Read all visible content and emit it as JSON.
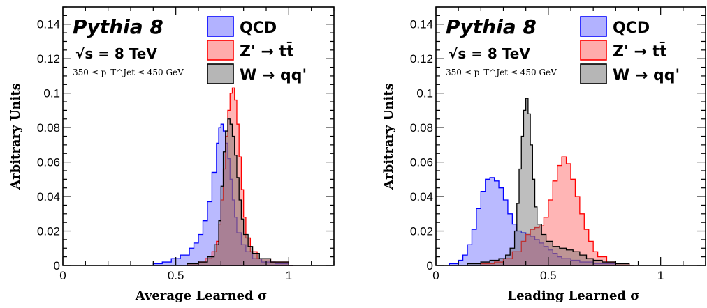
{
  "chart_data": [
    {
      "type": "histogram",
      "xlabel": "Average Learned σ",
      "ylabel": "Arbitrary Units",
      "xlim": [
        0,
        1.2
      ],
      "ylim": [
        0,
        0.15
      ],
      "xticks": [
        "0",
        "0.5",
        "1"
      ],
      "yticks": [
        "0",
        "0.02",
        "0.04",
        "0.06",
        "0.08",
        "0.1",
        "0.12",
        "0.14"
      ],
      "annotations": {
        "generator": "Pythia 8",
        "energy": "√s = 8 TeV",
        "cut": "350 ≤ p_T^Jet ≤ 450 GeV"
      },
      "legend_position": "top-right",
      "series": [
        {
          "name": "QCD",
          "color": "#0000ff",
          "bins": [
            [
              0.4,
              0.001
            ],
            [
              0.44,
              0.002
            ],
            [
              0.48,
              0.004
            ],
            [
              0.52,
              0.006
            ],
            [
              0.56,
              0.01
            ],
            [
              0.58,
              0.013
            ],
            [
              0.6,
              0.018
            ],
            [
              0.62,
              0.026
            ],
            [
              0.64,
              0.037
            ],
            [
              0.66,
              0.054
            ],
            [
              0.68,
              0.071
            ],
            [
              0.69,
              0.08
            ],
            [
              0.7,
              0.082
            ],
            [
              0.71,
              0.078
            ],
            [
              0.72,
              0.071
            ],
            [
              0.73,
              0.062
            ],
            [
              0.74,
              0.05
            ],
            [
              0.75,
              0.038
            ],
            [
              0.76,
              0.028
            ],
            [
              0.77,
              0.019
            ],
            [
              0.79,
              0.012
            ],
            [
              0.81,
              0.008
            ],
            [
              0.84,
              0.004
            ],
            [
              0.88,
              0.002
            ],
            [
              0.94,
              0.001
            ],
            [
              1.0,
              0.0
            ]
          ]
        },
        {
          "name": "Z' → tt̄",
          "color": "#ff0000",
          "bins": [
            [
              0.55,
              0.001
            ],
            [
              0.6,
              0.002
            ],
            [
              0.63,
              0.004
            ],
            [
              0.66,
              0.008
            ],
            [
              0.68,
              0.014
            ],
            [
              0.69,
              0.024
            ],
            [
              0.7,
              0.038
            ],
            [
              0.71,
              0.056
            ],
            [
              0.72,
              0.075
            ],
            [
              0.73,
              0.09
            ],
            [
              0.74,
              0.1
            ],
            [
              0.75,
              0.103
            ],
            [
              0.76,
              0.096
            ],
            [
              0.77,
              0.082
            ],
            [
              0.78,
              0.063
            ],
            [
              0.79,
              0.044
            ],
            [
              0.8,
              0.028
            ],
            [
              0.81,
              0.016
            ],
            [
              0.83,
              0.008
            ],
            [
              0.86,
              0.004
            ],
            [
              0.92,
              0.002
            ],
            [
              1.0,
              0.0
            ]
          ]
        },
        {
          "name": "W → qq'",
          "color": "#000000",
          "bins": [
            [
              0.55,
              0.001
            ],
            [
              0.6,
              0.002
            ],
            [
              0.64,
              0.005
            ],
            [
              0.67,
              0.012
            ],
            [
              0.69,
              0.026
            ],
            [
              0.7,
              0.046
            ],
            [
              0.71,
              0.066
            ],
            [
              0.72,
              0.078
            ],
            [
              0.73,
              0.085
            ],
            [
              0.74,
              0.082
            ],
            [
              0.75,
              0.075
            ],
            [
              0.76,
              0.064
            ],
            [
              0.77,
              0.051
            ],
            [
              0.78,
              0.038
            ],
            [
              0.79,
              0.027
            ],
            [
              0.8,
              0.018
            ],
            [
              0.82,
              0.011
            ],
            [
              0.84,
              0.007
            ],
            [
              0.87,
              0.004
            ],
            [
              0.92,
              0.002
            ],
            [
              1.0,
              0.0
            ]
          ]
        }
      ]
    },
    {
      "type": "histogram",
      "xlabel": "Leading Learned σ",
      "ylabel": "Arbitrary Units",
      "xlim": [
        0,
        1.2
      ],
      "ylim": [
        0,
        0.15
      ],
      "xticks": [
        "0",
        "0.5",
        "1"
      ],
      "yticks": [
        "0",
        "0.02",
        "0.04",
        "0.06",
        "0.08",
        "0.1",
        "0.12",
        "0.14"
      ],
      "annotations": {
        "generator": "Pythia 8",
        "energy": "√s = 8 TeV",
        "cut": "350 ≤ p_T^Jet ≤ 450 GeV"
      },
      "legend_position": "top-right",
      "series": [
        {
          "name": "QCD",
          "color": "#0000ff",
          "bins": [
            [
              0.06,
              0.001
            ],
            [
              0.1,
              0.003
            ],
            [
              0.12,
              0.006
            ],
            [
              0.14,
              0.012
            ],
            [
              0.16,
              0.021
            ],
            [
              0.18,
              0.033
            ],
            [
              0.2,
              0.043
            ],
            [
              0.22,
              0.05
            ],
            [
              0.24,
              0.051
            ],
            [
              0.26,
              0.049
            ],
            [
              0.28,
              0.045
            ],
            [
              0.3,
              0.038
            ],
            [
              0.32,
              0.03
            ],
            [
              0.34,
              0.024
            ],
            [
              0.36,
              0.02
            ],
            [
              0.38,
              0.019
            ],
            [
              0.4,
              0.018
            ],
            [
              0.42,
              0.017
            ],
            [
              0.44,
              0.015
            ],
            [
              0.46,
              0.013
            ],
            [
              0.48,
              0.011
            ],
            [
              0.5,
              0.009
            ],
            [
              0.52,
              0.007
            ],
            [
              0.54,
              0.005
            ],
            [
              0.56,
              0.004
            ],
            [
              0.6,
              0.003
            ],
            [
              0.64,
              0.002
            ],
            [
              0.7,
              0.001
            ],
            [
              0.8,
              0.0
            ]
          ]
        },
        {
          "name": "Z' → tt̄",
          "color": "#ff0000",
          "bins": [
            [
              0.2,
              0.001
            ],
            [
              0.26,
              0.002
            ],
            [
              0.3,
              0.004
            ],
            [
              0.34,
              0.008
            ],
            [
              0.38,
              0.014
            ],
            [
              0.4,
              0.018
            ],
            [
              0.42,
              0.021
            ],
            [
              0.44,
              0.022
            ],
            [
              0.46,
              0.023
            ],
            [
              0.48,
              0.028
            ],
            [
              0.5,
              0.038
            ],
            [
              0.52,
              0.049
            ],
            [
              0.54,
              0.058
            ],
            [
              0.56,
              0.063
            ],
            [
              0.58,
              0.059
            ],
            [
              0.6,
              0.05
            ],
            [
              0.62,
              0.04
            ],
            [
              0.64,
              0.03
            ],
            [
              0.66,
              0.021
            ],
            [
              0.68,
              0.014
            ],
            [
              0.7,
              0.008
            ],
            [
              0.72,
              0.005
            ],
            [
              0.76,
              0.002
            ],
            [
              0.8,
              0.001
            ],
            [
              0.86,
              0.0
            ]
          ]
        },
        {
          "name": "W → qq'",
          "color": "#000000",
          "bins": [
            [
              0.14,
              0.001
            ],
            [
              0.2,
              0.002
            ],
            [
              0.24,
              0.003
            ],
            [
              0.28,
              0.004
            ],
            [
              0.31,
              0.006
            ],
            [
              0.33,
              0.01
            ],
            [
              0.35,
              0.02
            ],
            [
              0.36,
              0.036
            ],
            [
              0.37,
              0.056
            ],
            [
              0.38,
              0.075
            ],
            [
              0.39,
              0.09
            ],
            [
              0.4,
              0.097
            ],
            [
              0.41,
              0.088
            ],
            [
              0.42,
              0.07
            ],
            [
              0.43,
              0.05
            ],
            [
              0.44,
              0.034
            ],
            [
              0.45,
              0.024
            ],
            [
              0.47,
              0.018
            ],
            [
              0.49,
              0.014
            ],
            [
              0.52,
              0.011
            ],
            [
              0.55,
              0.01
            ],
            [
              0.58,
              0.009
            ],
            [
              0.61,
              0.008
            ],
            [
              0.64,
              0.006
            ],
            [
              0.67,
              0.004
            ],
            [
              0.7,
              0.003
            ],
            [
              0.74,
              0.002
            ],
            [
              0.8,
              0.001
            ],
            [
              0.86,
              0.0
            ]
          ]
        }
      ]
    }
  ]
}
